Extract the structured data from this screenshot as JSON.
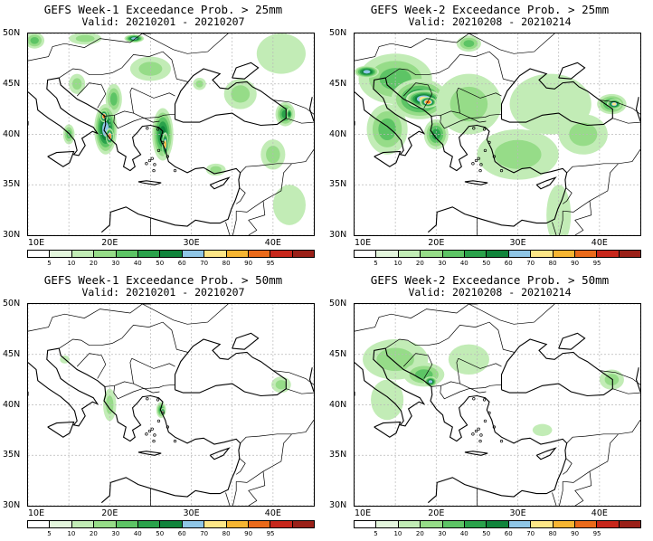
{
  "panels": [
    {
      "title": "GEFS Week-1 Exceedance Prob. > 25mm",
      "valid": "Valid: 20210201 - 20210207",
      "features": [
        {
          "kind": "blob",
          "lon": 10.8,
          "lat": 49.3,
          "rx": 1.2,
          "ry": 0.8,
          "level": 3
        },
        {
          "kind": "blob",
          "lon": 16,
          "lat": 45,
          "rx": 1,
          "ry": 1,
          "level": 2
        },
        {
          "kind": "blob",
          "lon": 20.5,
          "lat": 43.5,
          "rx": 1,
          "ry": 1.5,
          "level": 3
        },
        {
          "kind": "blob",
          "lon": 19.5,
          "lat": 40.5,
          "rx": 1.4,
          "ry": 2.5,
          "level": 6
        },
        {
          "kind": "blob",
          "lon": 19.3,
          "lat": 41.8,
          "rx": 0.5,
          "ry": 0.6,
          "level": 9
        },
        {
          "kind": "blob",
          "lon": 20,
          "lat": 39.8,
          "rx": 0.5,
          "ry": 0.8,
          "level": 9
        },
        {
          "kind": "blob",
          "lon": 26.5,
          "lat": 40,
          "rx": 1.3,
          "ry": 2.6,
          "level": 5
        },
        {
          "kind": "blob",
          "lon": 26.8,
          "lat": 39,
          "rx": 0.4,
          "ry": 1.2,
          "level": 8
        },
        {
          "kind": "blob",
          "lon": 15,
          "lat": 40,
          "rx": 0.7,
          "ry": 1,
          "level": 3
        },
        {
          "kind": "blob",
          "lon": 31,
          "lat": 45,
          "rx": 0.8,
          "ry": 0.6,
          "level": 2
        },
        {
          "kind": "blob",
          "lon": 17,
          "lat": 49.5,
          "rx": 2,
          "ry": 0.6,
          "level": 2
        },
        {
          "kind": "blob",
          "lon": 23,
          "lat": 49.5,
          "rx": 1.2,
          "ry": 0.4,
          "level": 6
        },
        {
          "kind": "blob",
          "lon": 36,
          "lat": 44,
          "rx": 2,
          "ry": 1.5,
          "level": 2
        },
        {
          "kind": "blob",
          "lon": 41.5,
          "lat": 42,
          "rx": 1.2,
          "ry": 1.2,
          "level": 4
        },
        {
          "kind": "blob",
          "lon": 42,
          "lat": 42,
          "rx": 0.4,
          "ry": 0.6,
          "level": 5
        },
        {
          "kind": "blob",
          "lon": 41,
          "lat": 48,
          "rx": 3,
          "ry": 2,
          "level": 1
        },
        {
          "kind": "blob",
          "lon": 25,
          "lat": 46.5,
          "rx": 2.5,
          "ry": 1.2,
          "level": 2
        },
        {
          "kind": "blob",
          "lon": 40,
          "lat": 38,
          "rx": 1.5,
          "ry": 1.5,
          "level": 2
        },
        {
          "kind": "blob",
          "lon": 33,
          "lat": 36.5,
          "rx": 1.2,
          "ry": 0.6,
          "level": 2
        },
        {
          "kind": "blob",
          "lon": 42,
          "lat": 33,
          "rx": 2,
          "ry": 2,
          "level": 1
        }
      ]
    },
    {
      "title": "GEFS Week-2 Exceedance Prob. > 25mm",
      "valid": "Valid: 20210208 - 20210214",
      "features": [
        {
          "kind": "blob",
          "lon": 15,
          "lat": 45.5,
          "rx": 4.5,
          "ry": 2.5,
          "level": 3
        },
        {
          "kind": "blob",
          "lon": 18,
          "lat": 43.5,
          "rx": 3.5,
          "ry": 2,
          "level": 5
        },
        {
          "kind": "blob",
          "lon": 18.5,
          "lat": 43.5,
          "rx": 2.2,
          "ry": 0.9,
          "level": 7
        },
        {
          "kind": "blob",
          "lon": 19,
          "lat": 43.2,
          "rx": 1,
          "ry": 0.5,
          "level": 9
        },
        {
          "kind": "blob",
          "lon": 11.5,
          "lat": 46.2,
          "rx": 1.5,
          "ry": 0.6,
          "level": 6
        },
        {
          "kind": "blob",
          "lon": 14,
          "lat": 40.5,
          "rx": 2.5,
          "ry": 2.5,
          "level": 3
        },
        {
          "kind": "blob",
          "lon": 20,
          "lat": 40,
          "rx": 1.5,
          "ry": 1.5,
          "level": 4
        },
        {
          "kind": "blob",
          "lon": 24,
          "lat": 43,
          "rx": 4,
          "ry": 3,
          "level": 2
        },
        {
          "kind": "blob",
          "lon": 34,
          "lat": 43,
          "rx": 5,
          "ry": 3,
          "level": 1
        },
        {
          "kind": "blob",
          "lon": 41.5,
          "lat": 43,
          "rx": 1.8,
          "ry": 1,
          "level": 4
        },
        {
          "kind": "blob",
          "lon": 41.8,
          "lat": 43,
          "rx": 0.9,
          "ry": 0.5,
          "level": 7
        },
        {
          "kind": "blob",
          "lon": 24,
          "lat": 49,
          "rx": 1.5,
          "ry": 0.8,
          "level": 3
        },
        {
          "kind": "blob",
          "lon": 30,
          "lat": 38,
          "rx": 5,
          "ry": 2.5,
          "level": 2
        },
        {
          "kind": "blob",
          "lon": 38,
          "lat": 40,
          "rx": 3,
          "ry": 2,
          "level": 2
        },
        {
          "kind": "blob",
          "lon": 35,
          "lat": 32,
          "rx": 1.5,
          "ry": 3,
          "level": 1
        }
      ]
    },
    {
      "title": "GEFS Week-1 Exceedance Prob. > 50mm",
      "valid": "Valid: 20210201 - 20210207",
      "features": [
        {
          "kind": "blob",
          "lon": 20,
          "lat": 40,
          "rx": 0.8,
          "ry": 1.6,
          "level": 2
        },
        {
          "kind": "blob",
          "lon": 26.3,
          "lat": 39.5,
          "rx": 0.6,
          "ry": 0.8,
          "level": 4
        },
        {
          "kind": "blob",
          "lon": 26.5,
          "lat": 39.3,
          "rx": 0.3,
          "ry": 0.4,
          "level": 7
        },
        {
          "kind": "blob",
          "lon": 41,
          "lat": 42,
          "rx": 1.2,
          "ry": 0.8,
          "level": 2
        },
        {
          "kind": "blob",
          "lon": 14.5,
          "lat": 44.5,
          "rx": 0.6,
          "ry": 0.4,
          "level": 1
        }
      ]
    },
    {
      "title": "GEFS Week-2 Exceedance Prob. > 50mm",
      "valid": "Valid: 20210208 - 20210214",
      "features": [
        {
          "kind": "blob",
          "lon": 15,
          "lat": 44.5,
          "rx": 4,
          "ry": 2,
          "level": 2
        },
        {
          "kind": "blob",
          "lon": 18.5,
          "lat": 43,
          "rx": 2.5,
          "ry": 1.2,
          "level": 3
        },
        {
          "kind": "blob",
          "lon": 19.3,
          "lat": 42.3,
          "rx": 0.8,
          "ry": 0.5,
          "level": 6
        },
        {
          "kind": "blob",
          "lon": 14,
          "lat": 40.5,
          "rx": 2,
          "ry": 2,
          "level": 1
        },
        {
          "kind": "blob",
          "lon": 24,
          "lat": 44.5,
          "rx": 2.5,
          "ry": 1.5,
          "level": 1
        },
        {
          "kind": "blob",
          "lon": 41.5,
          "lat": 42.5,
          "rx": 1.5,
          "ry": 1,
          "level": 2
        },
        {
          "kind": "blob",
          "lon": 33,
          "lat": 37.5,
          "rx": 1.2,
          "ry": 0.6,
          "level": 1
        }
      ]
    }
  ],
  "axes": {
    "lat_labels": [
      "30N",
      "35N",
      "40N",
      "45N",
      "50N"
    ],
    "lat_values": [
      30,
      35,
      40,
      45,
      50
    ],
    "lon_labels": [
      "10E",
      "20E",
      "30E",
      "40E"
    ],
    "lon_values": [
      10,
      20,
      30,
      40
    ],
    "lon_range": [
      10,
      45
    ],
    "lat_range": [
      30,
      50
    ]
  },
  "colorbar": {
    "labels": [
      "5",
      "10",
      "20",
      "30",
      "40",
      "50",
      "60",
      "70",
      "80",
      "90",
      "95"
    ],
    "colors": [
      "#ffffff",
      "#e4f6dd",
      "#c2ecb6",
      "#96dc88",
      "#5dc465",
      "#2aa24b",
      "#10843b",
      "#8fc6e6",
      "#fde687",
      "#f6b532",
      "#ea6a1a",
      "#c7271b",
      "#9a2018"
    ]
  }
}
